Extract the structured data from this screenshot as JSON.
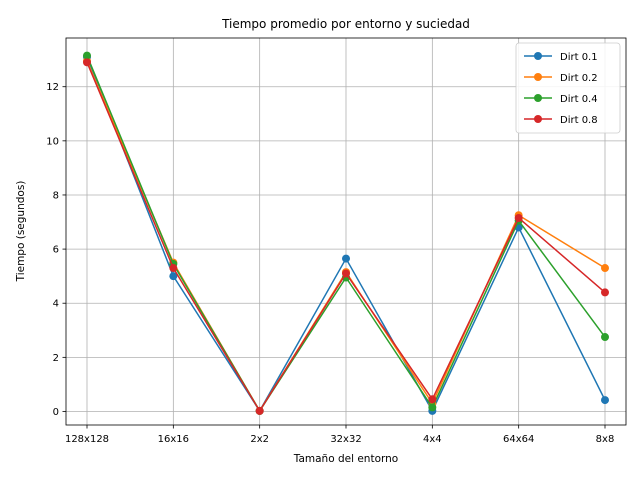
{
  "chart_data": {
    "type": "line",
    "title": "Tiempo promedio por entorno y suciedad",
    "xlabel": "Tamaño del entorno",
    "ylabel": "Tiempo (segundos)",
    "categories": [
      "128x128",
      "16x16",
      "2x2",
      "32x32",
      "4x4",
      "64x64",
      "8x8"
    ],
    "ylim": [
      -0.5,
      13.8
    ],
    "yticks": [
      0,
      2,
      4,
      6,
      8,
      10,
      12
    ],
    "grid": true,
    "legend_position": "top-right",
    "marker": "circle",
    "series": [
      {
        "name": "Dirt 0.1",
        "color": "#1f77b4",
        "values": [
          13.1,
          5.0,
          0.02,
          5.65,
          0.02,
          6.8,
          0.42
        ]
      },
      {
        "name": "Dirt 0.2",
        "color": "#ff7f0e",
        "values": [
          12.95,
          5.5,
          0.02,
          5.15,
          0.3,
          7.25,
          5.3
        ]
      },
      {
        "name": "Dirt 0.4",
        "color": "#2ca02c",
        "values": [
          13.15,
          5.45,
          0.02,
          4.95,
          0.15,
          7.05,
          2.75
        ]
      },
      {
        "name": "Dirt 0.8",
        "color": "#d62728",
        "values": [
          12.9,
          5.3,
          0.02,
          5.1,
          0.45,
          7.15,
          4.4
        ]
      }
    ]
  }
}
